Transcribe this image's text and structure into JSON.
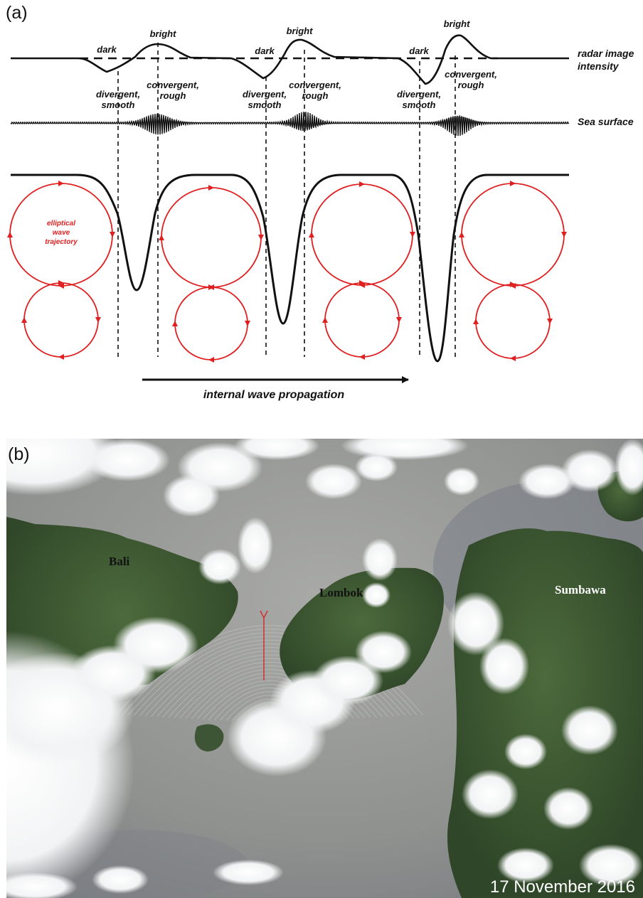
{
  "panel_a": {
    "label": "(a)",
    "signal_labels": {
      "radar_1": "radar image",
      "radar_2": "intensity",
      "sea": "Sea surface"
    },
    "wave_labels": {
      "dark": "dark",
      "bright": "bright",
      "div_1": "divergent,",
      "div_2": "smooth",
      "conv_1": "convergent,",
      "conv_2": "rough"
    },
    "trajectory_label": [
      "elliptical",
      "wave",
      "trajectory"
    ],
    "propagation_label": "internal wave propagation",
    "colors": {
      "ink": "#111111",
      "trajectory": "#e02020"
    }
  },
  "panel_b": {
    "label": "(b)",
    "islands": {
      "bali": "Bali",
      "lombok": "Lombok",
      "sumbawa": "Sumbawa"
    },
    "date": "17 November 2016",
    "colors": {
      "sea": "#9a9c9a",
      "land": "#3f5a33",
      "cloud": "#f7f8f9",
      "arrow": "#d42a2a"
    }
  }
}
